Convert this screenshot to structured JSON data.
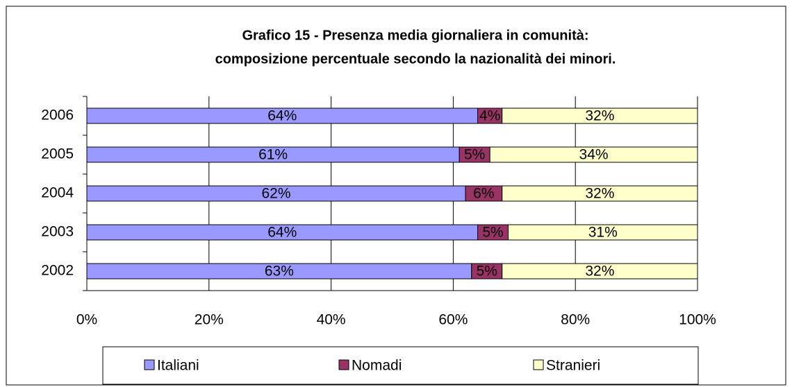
{
  "chart_data": {
    "type": "stacked-bar-horizontal",
    "title": [
      "Grafico 15 - Presenza media giornaliera in comunità:",
      "composizione percentuale secondo la nazionalità dei minori."
    ],
    "categories": [
      "2002",
      "2003",
      "2004",
      "2005",
      "2006"
    ],
    "series": [
      {
        "name": "Italiani",
        "color": "#9999ff",
        "values": [
          63,
          64,
          62,
          61,
          64
        ],
        "value_labels": [
          "63%",
          "64%",
          "62%",
          "61%",
          "64%"
        ]
      },
      {
        "name": "Nomadi",
        "color": "#993366",
        "values": [
          5,
          5,
          6,
          5,
          4
        ],
        "value_labels": [
          "5%",
          "5%",
          "6%",
          "5%",
          "4%"
        ]
      },
      {
        "name": "Stranieri",
        "color": "#ffffcc",
        "values": [
          32,
          31,
          32,
          34,
          32
        ],
        "value_labels": [
          "32%",
          "31%",
          "32%",
          "34%",
          "32%"
        ]
      }
    ],
    "xlim": [
      0,
      100
    ],
    "xticks": [
      {
        "value": 0,
        "label": "0%"
      },
      {
        "value": 20,
        "label": "20%"
      },
      {
        "value": 40,
        "label": "40%"
      },
      {
        "value": 60,
        "label": "60%"
      },
      {
        "value": 80,
        "label": "80%"
      },
      {
        "value": 100,
        "label": "100%"
      }
    ],
    "grid": true,
    "legend": "bottom"
  }
}
